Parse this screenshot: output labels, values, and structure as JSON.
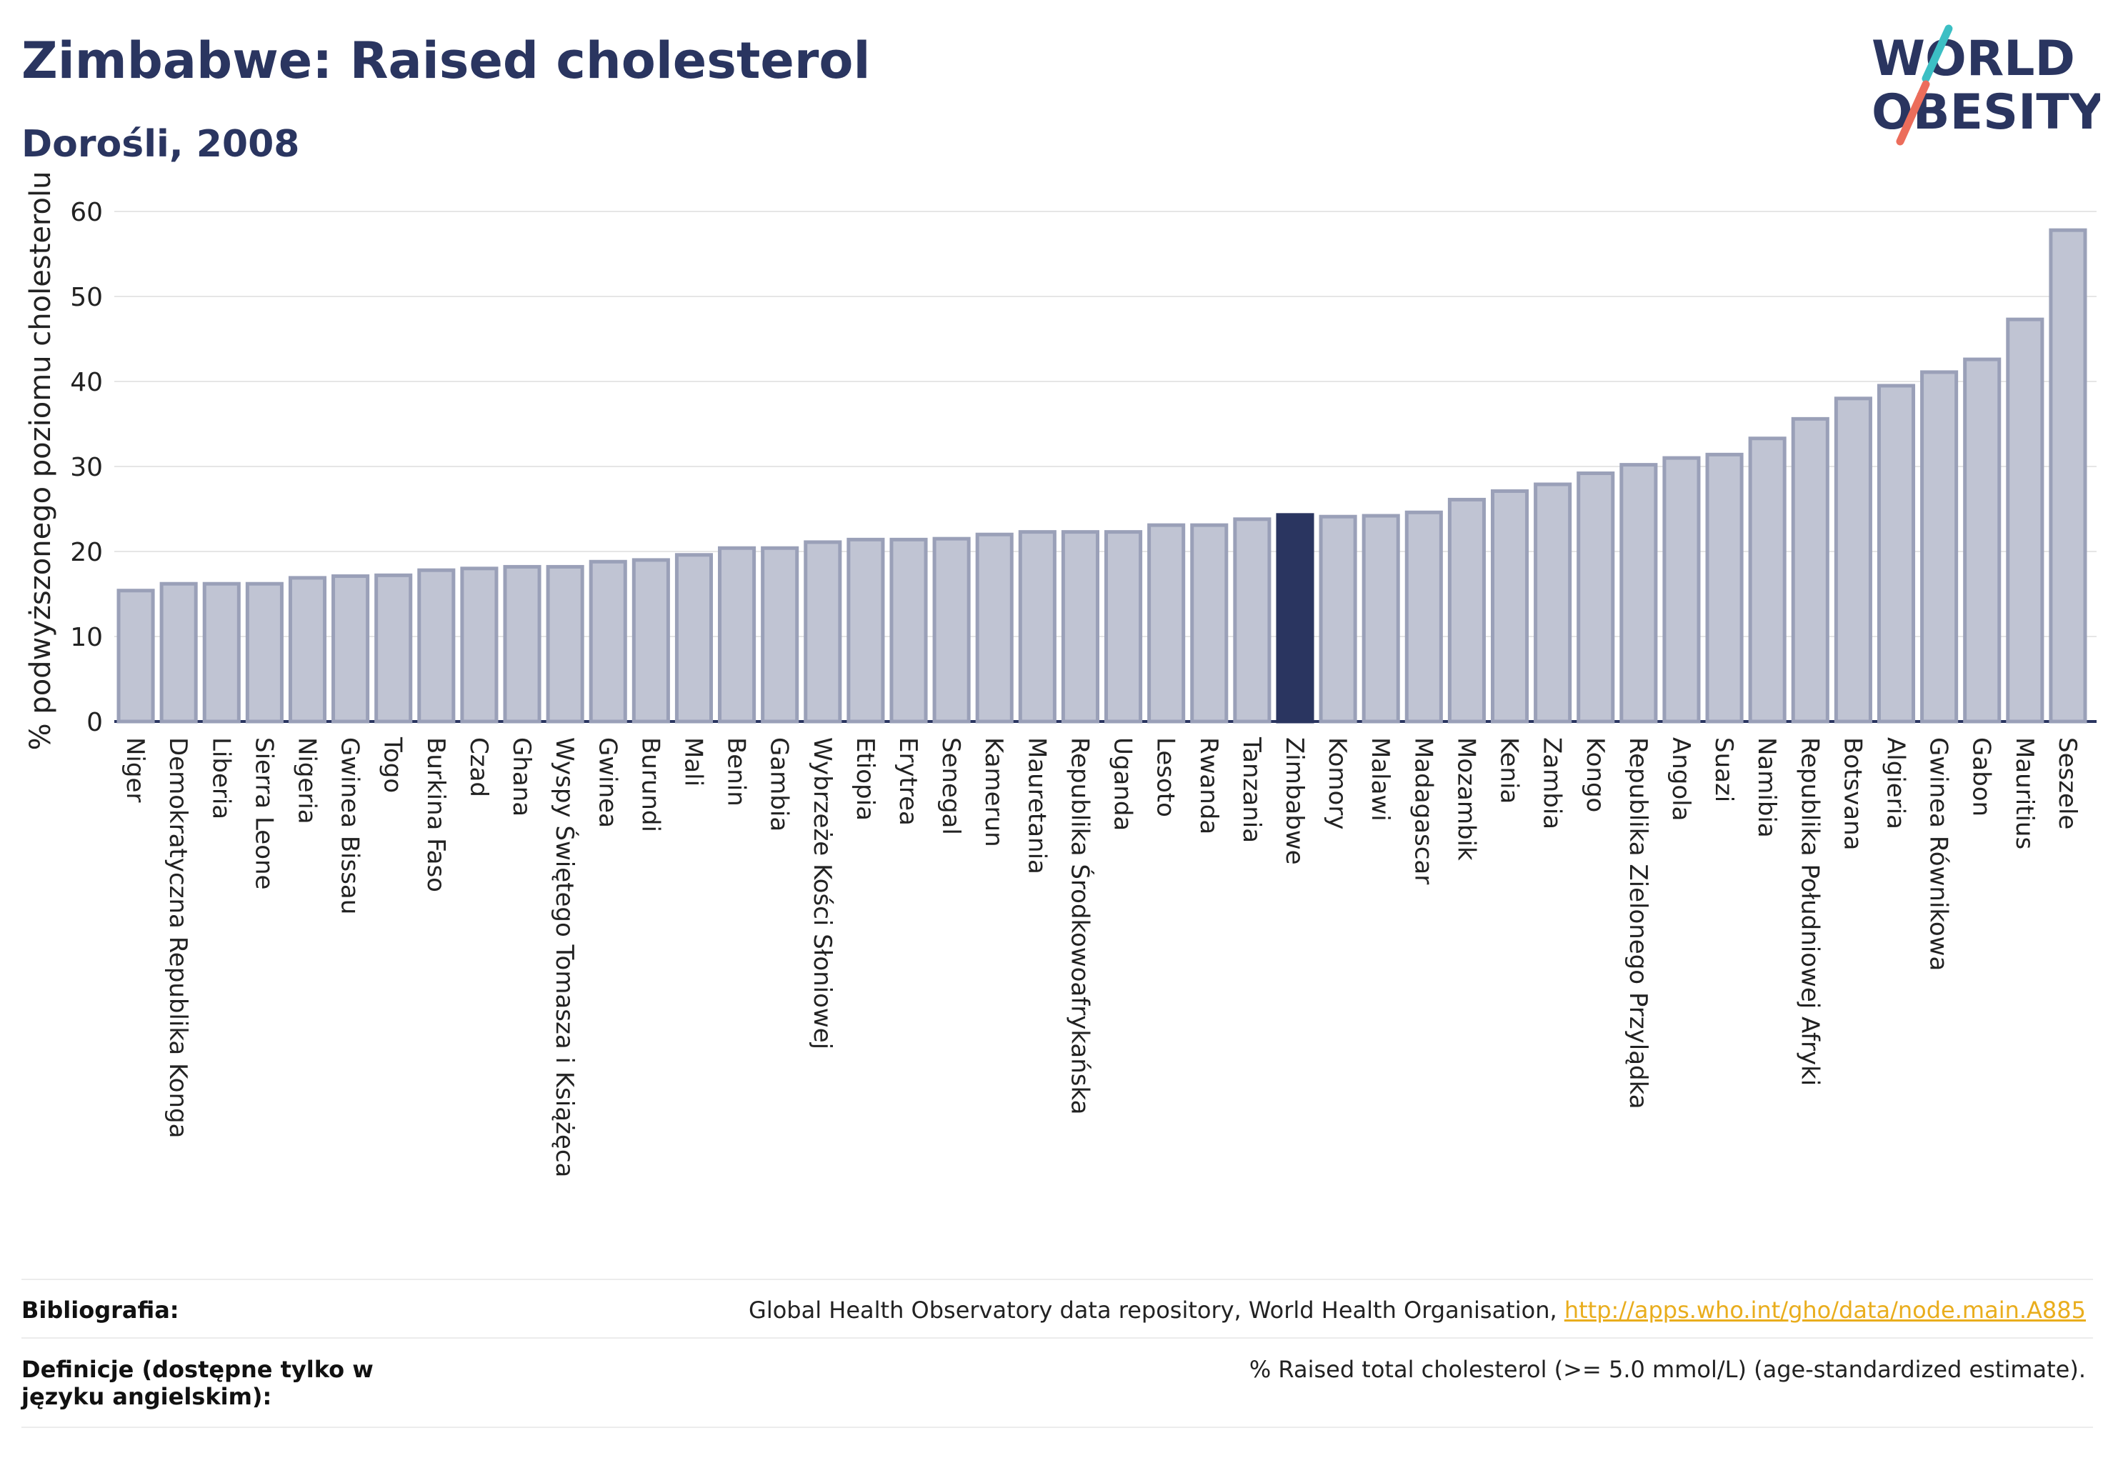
{
  "header": {
    "title": "Zimbabwe: Raised cholesterol",
    "subtitle": "Dorośli, 2008"
  },
  "logo": {
    "line1": "WORLD",
    "line2": "OBESITY"
  },
  "chart_data": {
    "type": "bar",
    "ylabel": "% podwyższonego poziomu cholesterolu",
    "ylim": [
      0,
      60
    ],
    "yticks": [
      0,
      10,
      20,
      30,
      40,
      50,
      60
    ],
    "grid": true,
    "highlight": "Zimbabwe",
    "colors": {
      "bar": "#c0c4d3",
      "bar_border": "#9aa0b8",
      "highlight": "#2a3560",
      "grid": "#e6e6e6"
    },
    "categories": [
      "Niger",
      "Demokratyczna Republika Konga",
      "Liberia",
      "Sierra Leone",
      "Nigeria",
      "Gwinea Bissau",
      "Togo",
      "Burkina Faso",
      "Czad",
      "Ghana",
      "Wyspy Świętego Tomasza i Książęca",
      "Gwinea",
      "Burundi",
      "Mali",
      "Benin",
      "Gambia",
      "Wybrzeże Kości Słoniowej",
      "Etiopia",
      "Erytrea",
      "Senegal",
      "Kamerun",
      "Mauretania",
      "Republika Środkowoafrykańska",
      "Uganda",
      "Lesoto",
      "Rwanda",
      "Tanzania",
      "Zimbabwe",
      "Komory",
      "Malawi",
      "Madagascar",
      "Mozambik",
      "Kenia",
      "Zambia",
      "Kongo",
      "Republika Zielonego Przylądka",
      "Angola",
      "Suazi",
      "Namibia",
      "Republika Południowej Afryki",
      "Botsvana",
      "Algieria",
      "Gwinea Równikowa",
      "Gabon",
      "Mauritius",
      "Seszele"
    ],
    "values": [
      15.4,
      16.2,
      16.2,
      16.2,
      16.9,
      17.1,
      17.2,
      17.8,
      18.0,
      18.2,
      18.2,
      18.8,
      19.0,
      19.6,
      20.4,
      20.4,
      21.1,
      21.4,
      21.4,
      21.5,
      22.0,
      22.3,
      22.3,
      22.3,
      23.1,
      23.1,
      23.8,
      24.3,
      24.1,
      24.2,
      24.6,
      26.1,
      27.1,
      27.9,
      29.2,
      30.2,
      31.0,
      31.4,
      33.3,
      35.6,
      38.0,
      39.5,
      41.1,
      42.6,
      47.3,
      57.8
    ]
  },
  "footer": {
    "bibliography_label": "Bibliografia:",
    "bibliography_text": "Global Health Observatory data repository, World Health Organisation, ",
    "bibliography_link": "http://apps.who.int/gho/data/node.main.A885",
    "definitions_label": "Definicje (dostępne tylko w języku angielskim):",
    "definitions_text": "% Raised total cholesterol (>= 5.0 mmol/L) (age-standardized estimate)."
  }
}
